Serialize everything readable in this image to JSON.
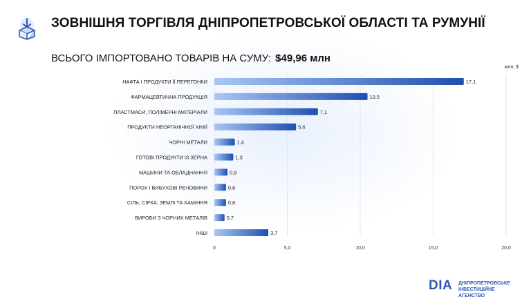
{
  "header": {
    "title": "ЗОВНІШНЯ ТОРГІВЛЯ ДНІПРОПЕТРОВСЬКОЇ ОБЛАСТІ ТА РУМУНІЇ",
    "subtitle_label": "ВСЬОГО ІМПОРТОВАНО ТОВАРІВ НА СУМУ:",
    "subtitle_amount": "$49,96 млн",
    "icon": "box-arrow-icon"
  },
  "chart_data": {
    "type": "bar",
    "orientation": "horizontal",
    "unit_label": "млн, $",
    "categories": [
      "НАФТА І ПРОДУКТИ ЇЇ ПЕРЕГОНКИ",
      "ФАРМАЦЕВТИЧНА ПРОДУКЦІЯ",
      "ПЛАСТМАСИ, ПОЛІМЕРНІ МАТЕРІАЛИ",
      "ПРОДУКТИ НЕОРГАНІЧНОЇ ХІМІЇ",
      "ЧОРНІ МЕТАЛИ",
      "ГОТОВІ ПРОДУКТИ ІЗ ЗЕРНА",
      "МАШИНИ ТА ОБЛАДНАННЯ",
      "ПОРОХ І ВИБУХОВІ РЕЧОВИНИ",
      "СІЛЬ; СІРКА; ЗЕМЛІ ТА КАМІННЯ",
      "ВИРОБИ З ЧОРНИХ МЕТАЛІВ",
      "ІНШІ"
    ],
    "values": [
      17.1,
      10.5,
      7.1,
      5.6,
      1.4,
      1.3,
      0.9,
      0.8,
      0.8,
      0.7,
      3.7
    ],
    "value_labels": [
      "17,1",
      "10,5",
      "7,1",
      "5,6",
      "1,4",
      "1,3",
      "0,9",
      "0,8",
      "0,8",
      "0,7",
      "3,7"
    ],
    "xlim": [
      0,
      20
    ],
    "x_ticks": [
      0,
      5,
      10,
      15,
      20
    ],
    "x_tick_labels": [
      "0",
      "5,0",
      "10,0",
      "15,0",
      "20,0"
    ],
    "grid": "vertical",
    "colors": {
      "bar_start": "#a9c6f5",
      "bar_end": "#1f4fb0",
      "grid": "#e2e6ee",
      "text": "#222222"
    }
  },
  "logo": {
    "mark": "DIA",
    "line1": "ДНІПРОПЕТРОВСЬКЕ",
    "line2": "ІНВЕСТИЦІЙНЕ АГЕНСТВО",
    "color": "#2f56b3"
  }
}
